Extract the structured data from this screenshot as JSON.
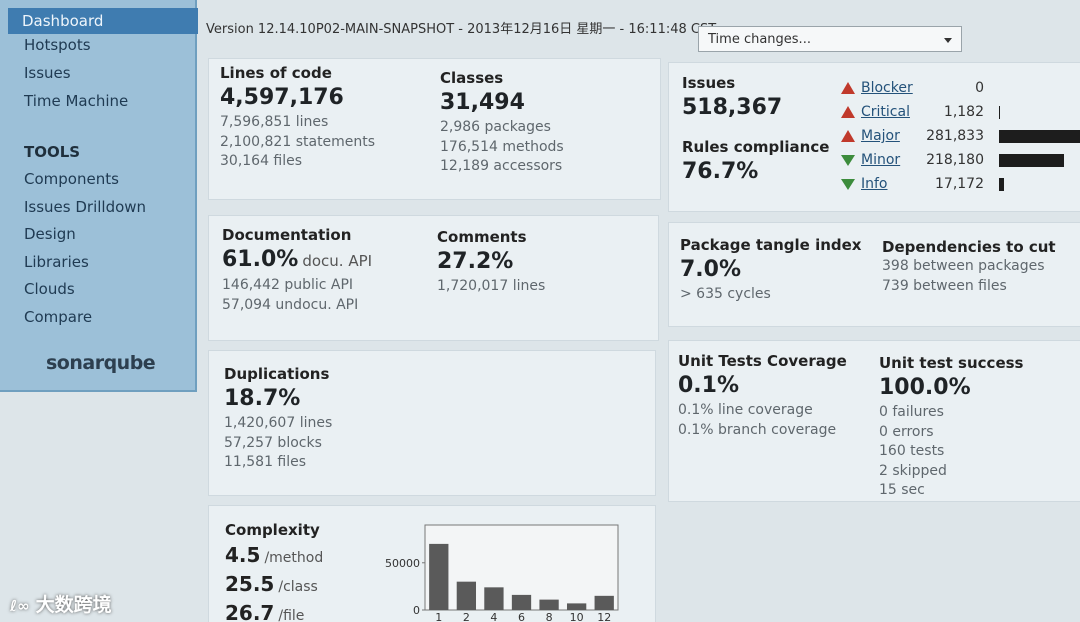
{
  "sidebar": {
    "menu": [
      "Dashboard",
      "Hotspots",
      "Issues",
      "Time Machine"
    ],
    "tools_heading": "TOOLS",
    "tools": [
      "Components",
      "Issues Drilldown",
      "Design",
      "Libraries",
      "Clouds",
      "Compare"
    ],
    "logo": "sonarqube"
  },
  "header": {
    "version": "Version 12.14.10P02-MAIN-SNAPSHOT - 2013年12月16日 星期一 - 16:11:48 CST",
    "time_select": "Time changes..."
  },
  "size": {
    "lines_of_code": {
      "label": "Lines of code",
      "value": "4,597,176",
      "details": [
        "7,596,851 lines",
        "2,100,821 statements",
        "30,164 files"
      ]
    },
    "classes": {
      "label": "Classes",
      "value": "31,494",
      "details": [
        "2,986 packages",
        "176,514 methods",
        "12,189 accessors"
      ]
    }
  },
  "issues": {
    "total": {
      "label": "Issues",
      "value": "518,367"
    },
    "compliance": {
      "label": "Rules compliance",
      "value": "76.7%"
    },
    "severities": [
      {
        "name": "Blocker",
        "count": 0,
        "color": "#c0392b"
      },
      {
        "name": "Critical",
        "count": {
          "value": 1182,
          "label": "1,182"
        },
        "color": "#c0392b"
      },
      {
        "name": "Major",
        "count": {
          "value": 281833,
          "label": "281,833"
        },
        "color": "#c0392b"
      },
      {
        "name": "Minor",
        "count": {
          "value": 218180,
          "label": "218,180"
        },
        "color": "#3c8c3c"
      },
      {
        "name": "Info",
        "count": {
          "value": 17172,
          "label": "17,172"
        },
        "color": "#3c8c3c"
      }
    ]
  },
  "documentation": {
    "docs": {
      "label": "Documentation",
      "value": "61.0%",
      "unit": "docu. API",
      "details": [
        "146,442 public API",
        "57,094 undocu. API"
      ]
    },
    "comments": {
      "label": "Comments",
      "value": "27.2%",
      "details": [
        "1,720,017 lines"
      ]
    }
  },
  "design": {
    "tangle": {
      "label": "Package tangle index",
      "value": "7.0%",
      "details": [
        "> 635 cycles"
      ]
    },
    "cuts": {
      "label": "Dependencies to cut",
      "details": [
        "398 between packages",
        "739 between files"
      ]
    }
  },
  "duplications": {
    "label": "Duplications",
    "value": "18.7%",
    "details": [
      "1,420,607 lines",
      "57,257 blocks",
      "11,581 files"
    ]
  },
  "tests": {
    "coverage": {
      "label": "Unit Tests Coverage",
      "value": "0.1%",
      "details": [
        "0.1% line coverage",
        "0.1% branch coverage"
      ]
    },
    "success": {
      "label": "Unit test success",
      "value": "100.0%",
      "details": [
        "0 failures",
        "0 errors",
        "160 tests",
        "2 skipped",
        "15 sec"
      ]
    }
  },
  "complexity": {
    "label": "Complexity",
    "metrics": [
      {
        "value": "4.5",
        "unit": "/method"
      },
      {
        "value": "25.5",
        "unit": "/class"
      },
      {
        "value": "26.7",
        "unit": "/file"
      }
    ],
    "chart_data": {
      "type": "bar",
      "categories": [
        "1",
        "2",
        "4",
        "6",
        "8",
        "10",
        "12"
      ],
      "values": [
        70000,
        30000,
        24000,
        16000,
        11000,
        7000,
        15000
      ],
      "color": "#5a5a5a",
      "ylim": [
        0,
        90000
      ],
      "yticks": [
        0,
        50000
      ]
    }
  },
  "watermark": "大数跨境"
}
